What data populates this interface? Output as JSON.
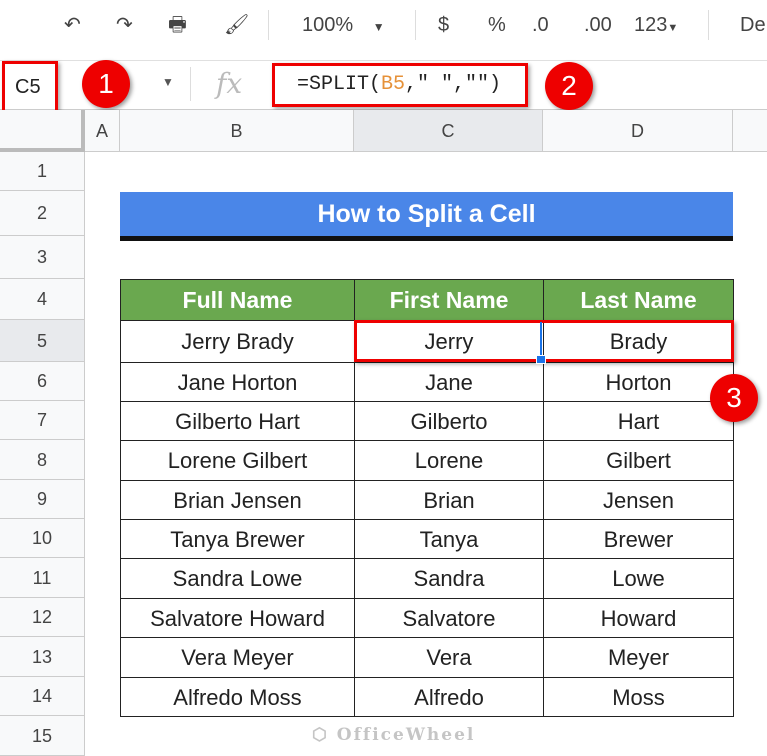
{
  "toolbar": {
    "undo_icon": "undo-icon",
    "redo_icon": "redo-icon",
    "print_icon": "print-icon",
    "paint_format_icon": "paint-format-icon",
    "zoom": "100%",
    "currency": "$",
    "percent": "%",
    "decrease_decimal": ".0",
    "increase_decimal": ".00",
    "more_formats": "123",
    "font": "De"
  },
  "formula_bar": {
    "cell_ref": "C5",
    "fx": "fx",
    "formula_prefix": "=SPLIT(",
    "formula_ref": "B5",
    "formula_suffix": ",\" \",\"\")"
  },
  "badges": [
    "1",
    "2",
    "3"
  ],
  "columns": [
    "A",
    "B",
    "C",
    "D"
  ],
  "rows": [
    "1",
    "2",
    "3",
    "4",
    "5",
    "6",
    "7",
    "8",
    "9",
    "10",
    "11",
    "12",
    "13",
    "14",
    "15"
  ],
  "title": "How to Split a Cell",
  "table": {
    "headers": [
      "Full Name",
      "First Name",
      "Last Name"
    ],
    "rows": [
      [
        "Jerry Brady",
        "Jerry",
        "Brady"
      ],
      [
        "Jane Horton",
        "Jane",
        "Horton"
      ],
      [
        "Gilberto Hart",
        "Gilberto",
        "Hart"
      ],
      [
        "Lorene Gilbert",
        "Lorene",
        "Gilbert"
      ],
      [
        "Brian Jensen",
        "Brian",
        "Jensen"
      ],
      [
        "Tanya Brewer",
        "Tanya",
        "Brewer"
      ],
      [
        "Sandra Lowe",
        "Sandra",
        "Lowe"
      ],
      [
        "Salvatore Howard",
        "Salvatore",
        "Howard"
      ],
      [
        "Vera Meyer",
        "Vera",
        "Meyer"
      ],
      [
        "Alfredo Moss",
        "Alfredo",
        "Moss"
      ]
    ]
  },
  "watermark": "OfficeWheel",
  "colors": {
    "title_bg": "#4a86e8",
    "header_bg": "#6aa84f",
    "highlight": "#ee0000",
    "ref": "#e69138"
  }
}
